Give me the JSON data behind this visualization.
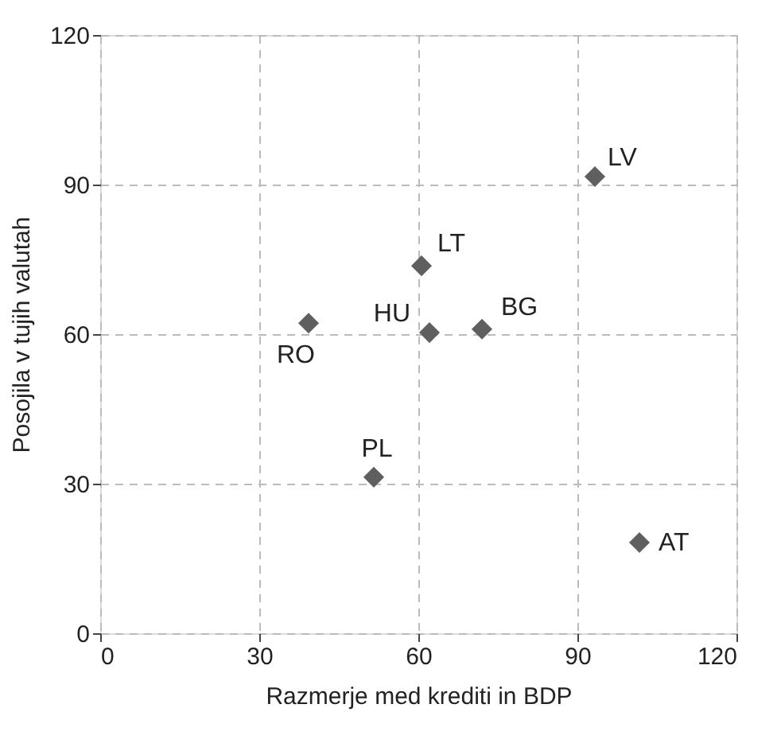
{
  "chart_data": {
    "type": "scatter",
    "xlabel": "Razmerje med krediti in BDP",
    "ylabel": "Posojila v tujih valutah",
    "x": [
      93.3,
      60.6,
      62.1,
      72.0,
      39.3,
      51.6,
      101.7
    ],
    "values": [
      91.6,
      73.7,
      60.3,
      61.0,
      62.2,
      31.3,
      18.2
    ],
    "color": "#5f5f5f",
    "marker": "diamond",
    "annotations": [
      {
        "text": "LV",
        "x": 93.3,
        "y": 91.6
      },
      {
        "text": "LT",
        "x": 60.6,
        "y": 73.7
      },
      {
        "text": "HU",
        "x": 62.1,
        "y": 60.3
      },
      {
        "text": "BG",
        "x": 72.0,
        "y": 61.0
      },
      {
        "text": "RO",
        "x": 39.3,
        "y": 62.2
      },
      {
        "text": "PL",
        "x": 51.6,
        "y": 31.3
      },
      {
        "text": "AT",
        "x": 101.7,
        "y": 18.2
      }
    ],
    "xlim": [
      0,
      120
    ],
    "ylim": [
      0,
      120
    ],
    "xticks": [
      0,
      30,
      60,
      90,
      120
    ],
    "yticks": [
      0,
      30,
      60,
      90,
      120
    ],
    "grid": true
  }
}
